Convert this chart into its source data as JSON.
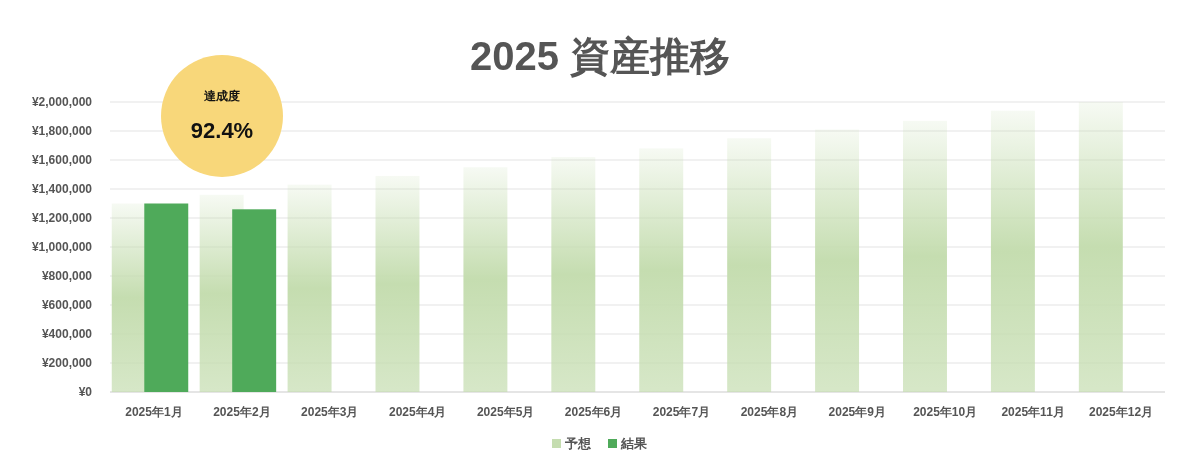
{
  "chart_data": {
    "type": "bar",
    "title": "2025 資産推移",
    "categories": [
      "2025年1月",
      "2025年2月",
      "2025年3月",
      "2025年4月",
      "2025年5月",
      "2025年6月",
      "2025年7月",
      "2025年8月",
      "2025年9月",
      "2025年10月",
      "2025年11月",
      "2025年12月"
    ],
    "series": [
      {
        "name": "予想",
        "color": "#c5ddb0",
        "values": [
          1300000,
          1360000,
          1430000,
          1490000,
          1550000,
          1620000,
          1680000,
          1750000,
          1810000,
          1870000,
          1940000,
          2000000
        ]
      },
      {
        "name": "結果",
        "color": "#4faa5a",
        "values": [
          1300000,
          1260000,
          null,
          null,
          null,
          null,
          null,
          null,
          null,
          null,
          null,
          null
        ]
      }
    ],
    "ylim": [
      0,
      2000000
    ],
    "yticks": [
      {
        "value": 0,
        "label": "¥0"
      },
      {
        "value": 200000,
        "label": "¥200,000"
      },
      {
        "value": 400000,
        "label": "¥400,000"
      },
      {
        "value": 600000,
        "label": "¥600,000"
      },
      {
        "value": 800000,
        "label": "¥800,000"
      },
      {
        "value": 1000000,
        "label": "¥1,000,000"
      },
      {
        "value": 1200000,
        "label": "¥1,200,000"
      },
      {
        "value": 1400000,
        "label": "¥1,400,000"
      },
      {
        "value": 1600000,
        "label": "¥1,600,000"
      },
      {
        "value": 1800000,
        "label": "¥1,800,000"
      },
      {
        "value": 2000000,
        "label": "¥2,000,000"
      }
    ],
    "grid": "y",
    "legend": "bottom",
    "annotations": [
      "達成度",
      "92.4%"
    ]
  }
}
